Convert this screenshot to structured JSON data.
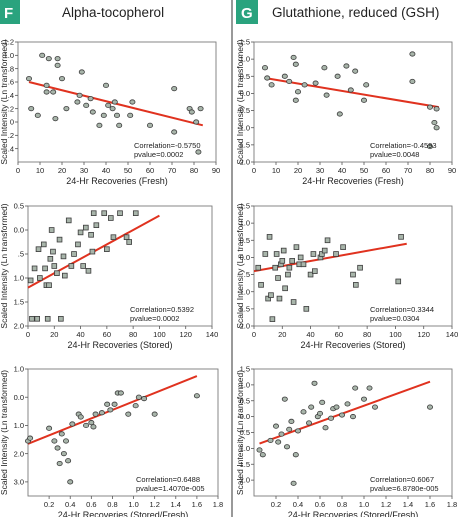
{
  "figure": {
    "divider_color": "#333333",
    "point_fill": "#a8b5aa",
    "fit_color": "#e0321f",
    "badge_color": "#2aa37e"
  },
  "columns": [
    {
      "badge": "F",
      "title": "Alpha-tocopherol"
    },
    {
      "badge": "G",
      "title": "Glutathione, reduced (GSH)"
    }
  ],
  "chart_data": [
    {
      "type": "scatter",
      "marker": "circle",
      "column": 0,
      "xlabel": "24-Hr Recoveries (Fresh)",
      "ylabel": "Scaled Intensity (Ln transformed)",
      "xlim": [
        0,
        90
      ],
      "ylim": [
        -0.6,
        1.2
      ],
      "xticks": [
        {
          "v": 0,
          "t": "0"
        },
        {
          "v": 10,
          "t": "10"
        },
        {
          "v": 20,
          "t": "20"
        },
        {
          "v": 30,
          "t": "30"
        },
        {
          "v": 40,
          "t": "40"
        },
        {
          "v": 50,
          "t": "50"
        },
        {
          "v": 60,
          "t": "60"
        },
        {
          "v": 70,
          "t": "70"
        },
        {
          "v": 80,
          "t": "80"
        },
        {
          "v": 90,
          "t": "90"
        }
      ],
      "yticks": [
        {
          "v": 1.2,
          "t": "1.2"
        },
        {
          "v": 1.0,
          "t": "1.0"
        },
        {
          "v": 0.8,
          "t": ".8"
        },
        {
          "v": 0.6,
          "t": ".6"
        },
        {
          "v": 0.4,
          "t": ".4"
        },
        {
          "v": 0.2,
          "t": ".2"
        },
        {
          "v": 0.0,
          "t": "0"
        },
        {
          "v": -0.2,
          "t": ".2"
        },
        {
          "v": -0.4,
          "t": ".4"
        }
      ],
      "correlation": "Correlation=-0.5750",
      "pvalue": "pvalue=0.0002",
      "fit": {
        "x1": 5,
        "y1": 0.6,
        "x2": 84,
        "y2": -0.05
      },
      "points": [
        [
          5,
          0.65
        ],
        [
          6,
          0.2
        ],
        [
          9,
          0.1
        ],
        [
          11,
          1.0
        ],
        [
          13,
          0.55
        ],
        [
          13,
          0.45
        ],
        [
          14,
          0.95
        ],
        [
          16,
          0.45
        ],
        [
          17,
          0.05
        ],
        [
          18,
          0.95
        ],
        [
          18,
          0.85
        ],
        [
          20,
          0.65
        ],
        [
          22,
          0.2
        ],
        [
          27,
          0.3
        ],
        [
          28,
          0.4
        ],
        [
          29,
          0.75
        ],
        [
          31,
          0.25
        ],
        [
          33,
          0.35
        ],
        [
          34,
          0.15
        ],
        [
          37,
          -0.05
        ],
        [
          39,
          0.1
        ],
        [
          40,
          0.55
        ],
        [
          41,
          0.25
        ],
        [
          43,
          0.2
        ],
        [
          44,
          0.3
        ],
        [
          45,
          0.1
        ],
        [
          46,
          -0.05
        ],
        [
          51,
          0.1
        ],
        [
          52,
          0.3
        ],
        [
          60,
          -0.05
        ],
        [
          71,
          0.5
        ],
        [
          71,
          -0.15
        ],
        [
          78,
          0.2
        ],
        [
          79,
          0.15
        ],
        [
          81,
          0.0
        ],
        [
          82,
          -0.45
        ],
        [
          83,
          0.2
        ]
      ]
    },
    {
      "type": "scatter",
      "marker": "circle",
      "column": 1,
      "xlabel": "24-Hr Recoveries (Fresh)",
      "ylabel": "Scaled Intensity (Ln transformed)",
      "xlim": [
        0,
        90
      ],
      "ylim": [
        -2.0,
        1.5
      ],
      "xticks": [
        {
          "v": 0,
          "t": "0"
        },
        {
          "v": 10,
          "t": "10"
        },
        {
          "v": 20,
          "t": "20"
        },
        {
          "v": 30,
          "t": "30"
        },
        {
          "v": 40,
          "t": "40"
        },
        {
          "v": 50,
          "t": "50"
        },
        {
          "v": 60,
          "t": "60"
        },
        {
          "v": 70,
          "t": "70"
        },
        {
          "v": 80,
          "t": "80"
        },
        {
          "v": 90,
          "t": "90"
        }
      ],
      "yticks": [
        {
          "v": 1.5,
          "t": "1.5"
        },
        {
          "v": 1.0,
          "t": "1.0"
        },
        {
          "v": 0.5,
          "t": "0.5"
        },
        {
          "v": 0.0,
          "t": "0.0"
        },
        {
          "v": -0.5,
          "t": "0.5"
        },
        {
          "v": -1.0,
          "t": "1.0"
        },
        {
          "v": -1.5,
          "t": "1.5"
        },
        {
          "v": -2.0,
          "t": "2.0"
        }
      ],
      "correlation": "Correlation=-0.4593",
      "pvalue": "pvalue=0.0048",
      "fit": {
        "x1": 5,
        "y1": 0.45,
        "x2": 84,
        "y2": -0.4
      },
      "points": [
        [
          5,
          0.75
        ],
        [
          6,
          0.45
        ],
        [
          8,
          0.25
        ],
        [
          14,
          0.5
        ],
        [
          16,
          0.35
        ],
        [
          18,
          1.05
        ],
        [
          19,
          -0.2
        ],
        [
          19,
          0.85
        ],
        [
          20,
          0.05
        ],
        [
          23,
          0.25
        ],
        [
          28,
          0.3
        ],
        [
          32,
          0.75
        ],
        [
          33,
          -0.05
        ],
        [
          38,
          0.5
        ],
        [
          39,
          -0.6
        ],
        [
          42,
          0.8
        ],
        [
          44,
          0.1
        ],
        [
          46,
          0.65
        ],
        [
          50,
          -0.2
        ],
        [
          51,
          0.25
        ],
        [
          72,
          1.15
        ],
        [
          72,
          0.35
        ],
        [
          80,
          -0.4
        ],
        [
          80,
          -1.55
        ],
        [
          82,
          -0.85
        ],
        [
          83,
          -0.45
        ],
        [
          83,
          -1.0
        ]
      ]
    },
    {
      "type": "scatter",
      "marker": "square",
      "column": 0,
      "xlabel": "24-Hr Recoveries (Stored)",
      "ylabel": "Scaled Intensity (Ln transformed)",
      "xlim": [
        0,
        140
      ],
      "ylim": [
        -2.0,
        0.5
      ],
      "xticks": [
        {
          "v": 0,
          "t": "0"
        },
        {
          "v": 20,
          "t": "20"
        },
        {
          "v": 40,
          "t": "40"
        },
        {
          "v": 60,
          "t": "60"
        },
        {
          "v": 80,
          "t": "80"
        },
        {
          "v": 100,
          "t": "100"
        },
        {
          "v": 120,
          "t": "120"
        },
        {
          "v": 140,
          "t": "140"
        }
      ],
      "yticks": [
        {
          "v": 0.5,
          "t": "0.5"
        },
        {
          "v": 0.0,
          "t": "0.0"
        },
        {
          "v": -0.5,
          "t": ".5"
        },
        {
          "v": -1.0,
          "t": "1.0"
        },
        {
          "v": -1.5,
          "t": "1.5"
        },
        {
          "v": -2.0,
          "t": "2.0"
        }
      ],
      "correlation": "Correlation=0.5392",
      "pvalue": "pvalue=0.0002",
      "fit": {
        "x1": 0,
        "y1": -1.2,
        "x2": 100,
        "y2": 0.3
      },
      "points": [
        [
          2,
          -1.05
        ],
        [
          3,
          -1.85
        ],
        [
          5,
          -0.8
        ],
        [
          7,
          -1.85
        ],
        [
          8,
          -0.4
        ],
        [
          9,
          -1.0
        ],
        [
          12,
          -0.3
        ],
        [
          13,
          -0.8
        ],
        [
          14,
          -1.15
        ],
        [
          15,
          -1.85
        ],
        [
          16,
          -1.15
        ],
        [
          17,
          -0.6
        ],
        [
          18,
          0.0
        ],
        [
          19,
          -0.45
        ],
        [
          20,
          -0.75
        ],
        [
          22,
          -0.9
        ],
        [
          24,
          -0.2
        ],
        [
          25,
          -1.85
        ],
        [
          27,
          -0.55
        ],
        [
          28,
          -0.95
        ],
        [
          31,
          0.2
        ],
        [
          33,
          -0.75
        ],
        [
          35,
          -0.5
        ],
        [
          38,
          -0.3
        ],
        [
          40,
          -0.05
        ],
        [
          42,
          -0.75
        ],
        [
          44,
          0.05
        ],
        [
          46,
          -0.85
        ],
        [
          48,
          -0.1
        ],
        [
          49,
          -0.45
        ],
        [
          50,
          0.35
        ],
        [
          52,
          0.1
        ],
        [
          58,
          0.35
        ],
        [
          60,
          -0.4
        ],
        [
          63,
          0.25
        ],
        [
          65,
          -0.15
        ],
        [
          70,
          0.35
        ],
        [
          75,
          -0.15
        ],
        [
          77,
          -0.25
        ],
        [
          82,
          0.35
        ]
      ]
    },
    {
      "type": "scatter",
      "marker": "square",
      "column": 1,
      "xlabel": "24-Hr Recoveries (Stored)",
      "ylabel": "Scaled Intensity (Ln transformed)",
      "xlim": [
        0,
        140
      ],
      "ylim": [
        -2.0,
        1.5
      ],
      "xticks": [
        {
          "v": 0,
          "t": "0"
        },
        {
          "v": 20,
          "t": "20"
        },
        {
          "v": 40,
          "t": "40"
        },
        {
          "v": 60,
          "t": "60"
        },
        {
          "v": 80,
          "t": "80"
        },
        {
          "v": 100,
          "t": "100"
        },
        {
          "v": 120,
          "t": "120"
        },
        {
          "v": 140,
          "t": "140"
        }
      ],
      "yticks": [
        {
          "v": 1.5,
          "t": "1.5"
        },
        {
          "v": 1.0,
          "t": "1.0"
        },
        {
          "v": 0.5,
          "t": "0.5"
        },
        {
          "v": 0.0,
          "t": "0.0"
        },
        {
          "v": -0.5,
          "t": ".5"
        },
        {
          "v": -1.0,
          "t": "1.0"
        },
        {
          "v": -1.5,
          "t": "1.5"
        },
        {
          "v": -2.0,
          "t": "2.0"
        }
      ],
      "correlation": "Correlation=0.3344",
      "pvalue": "pvalue=0.0304",
      "fit": {
        "x1": 0,
        "y1": -0.4,
        "x2": 108,
        "y2": 0.4
      },
      "points": [
        [
          3,
          -0.3
        ],
        [
          5,
          -0.8
        ],
        [
          8,
          0.1
        ],
        [
          10,
          -1.2
        ],
        [
          11,
          0.6
        ],
        [
          12,
          -1.1
        ],
        [
          13,
          -1.8
        ],
        [
          15,
          -0.3
        ],
        [
          16,
          0.1
        ],
        [
          17,
          -0.6
        ],
        [
          18,
          -1.2
        ],
        [
          19,
          -0.2
        ],
        [
          20,
          -0.1
        ],
        [
          21,
          0.2
        ],
        [
          22,
          -0.9
        ],
        [
          24,
          -0.5
        ],
        [
          25,
          -0.3
        ],
        [
          27,
          -0.1
        ],
        [
          28,
          -1.3
        ],
        [
          30,
          0.3
        ],
        [
          32,
          -0.2
        ],
        [
          33,
          0.0
        ],
        [
          35,
          -0.2
        ],
        [
          37,
          -1.5
        ],
        [
          40,
          -0.5
        ],
        [
          42,
          0.1
        ],
        [
          43,
          -0.4
        ],
        [
          47,
          0.0
        ],
        [
          48,
          0.1
        ],
        [
          50,
          0.2
        ],
        [
          52,
          0.5
        ],
        [
          58,
          0.1
        ],
        [
          63,
          0.3
        ],
        [
          70,
          -0.5
        ],
        [
          72,
          -0.8
        ],
        [
          75,
          -0.3
        ],
        [
          102,
          -0.7
        ],
        [
          104,
          0.6
        ]
      ]
    },
    {
      "type": "scatter",
      "marker": "circle",
      "column": 0,
      "xlabel": "24-Hr Recoveries (Stored/Fresh)",
      "ylabel": "Scaled Intensity (Ln transformed)",
      "xlim": [
        0,
        1.8
      ],
      "ylim": [
        -3.5,
        1.0
      ],
      "xticks": [
        {
          "v": 0.2,
          "t": "0.2"
        },
        {
          "v": 0.4,
          "t": "0.4"
        },
        {
          "v": 0.6,
          "t": "0.6"
        },
        {
          "v": 0.8,
          "t": "0.8"
        },
        {
          "v": 1.0,
          "t": "1.0"
        },
        {
          "v": 1.2,
          "t": "1.2"
        },
        {
          "v": 1.4,
          "t": "1.4"
        },
        {
          "v": 1.6,
          "t": "1.6"
        },
        {
          "v": 1.8,
          "t": "1.8"
        }
      ],
      "yticks": [
        {
          "v": 1.0,
          "t": "1.0"
        },
        {
          "v": 0.0,
          "t": "0.0"
        },
        {
          "v": -1.0,
          "t": "1.0"
        },
        {
          "v": -2.0,
          "t": "2.0"
        },
        {
          "v": -3.0,
          "t": "3.0"
        }
      ],
      "correlation": "Correlation=0.6488",
      "pvalue": "pvalue=1.4070e-005",
      "fit": {
        "x1": 0.0,
        "y1": -1.65,
        "x2": 1.6,
        "y2": 0.75
      },
      "points": [
        [
          0.0,
          -1.55
        ],
        [
          0.02,
          -1.45
        ],
        [
          0.2,
          -1.1
        ],
        [
          0.25,
          -1.55
        ],
        [
          0.28,
          -1.8
        ],
        [
          0.3,
          -2.35
        ],
        [
          0.32,
          -1.3
        ],
        [
          0.34,
          -2.0
        ],
        [
          0.36,
          -1.55
        ],
        [
          0.38,
          -2.25
        ],
        [
          0.4,
          -3.0
        ],
        [
          0.42,
          -0.95
        ],
        [
          0.48,
          -0.6
        ],
        [
          0.5,
          -0.7
        ],
        [
          0.55,
          -1.0
        ],
        [
          0.6,
          -0.9
        ],
        [
          0.62,
          -1.05
        ],
        [
          0.64,
          -0.6
        ],
        [
          0.7,
          -0.55
        ],
        [
          0.75,
          -0.25
        ],
        [
          0.78,
          -0.45
        ],
        [
          0.82,
          -0.25
        ],
        [
          0.85,
          0.15
        ],
        [
          0.88,
          0.15
        ],
        [
          0.95,
          -0.6
        ],
        [
          1.02,
          -0.3
        ],
        [
          1.05,
          0.0
        ],
        [
          1.1,
          -0.05
        ],
        [
          1.2,
          -0.6
        ],
        [
          1.6,
          0.05
        ]
      ]
    },
    {
      "type": "scatter",
      "marker": "circle",
      "column": 1,
      "xlabel": "24-Hr Recoveries (Stored/Fresh)",
      "ylabel": "Scaled Intensity (Ln transformed)",
      "xlim": [
        0,
        1.8
      ],
      "ylim": [
        -2.5,
        1.5
      ],
      "xticks": [
        {
          "v": 0.2,
          "t": "0.2"
        },
        {
          "v": 0.4,
          "t": "0.4"
        },
        {
          "v": 0.6,
          "t": "0.6"
        },
        {
          "v": 0.8,
          "t": "0.8"
        },
        {
          "v": 1.0,
          "t": "1.0"
        },
        {
          "v": 1.2,
          "t": "1.2"
        },
        {
          "v": 1.4,
          "t": "1.4"
        },
        {
          "v": 1.6,
          "t": "1.6"
        },
        {
          "v": 1.8,
          "t": "1.8"
        }
      ],
      "yticks": [
        {
          "v": 1.5,
          "t": "1.5"
        },
        {
          "v": 1.0,
          "t": "1.0"
        },
        {
          "v": 0.5,
          "t": "0.5"
        },
        {
          "v": 0.0,
          "t": "0.0"
        },
        {
          "v": -0.5,
          "t": "0.5"
        },
        {
          "v": -1.0,
          "t": "1.0"
        },
        {
          "v": -1.5,
          "t": "1.5"
        },
        {
          "v": -2.0,
          "t": "2.0"
        }
      ],
      "correlation": "Correlation=0.6067",
      "pvalue": "pvalue=6.8780e-005",
      "fit": {
        "x1": 0.05,
        "y1": -0.85,
        "x2": 1.6,
        "y2": 1.1
      },
      "points": [
        [
          0.05,
          -1.05
        ],
        [
          0.08,
          -1.2
        ],
        [
          0.15,
          -0.75
        ],
        [
          0.2,
          -0.3
        ],
        [
          0.22,
          -0.8
        ],
        [
          0.25,
          -0.55
        ],
        [
          0.28,
          0.55
        ],
        [
          0.3,
          -0.95
        ],
        [
          0.32,
          -0.4
        ],
        [
          0.34,
          -0.15
        ],
        [
          0.36,
          -2.1
        ],
        [
          0.38,
          -1.2
        ],
        [
          0.4,
          -0.45
        ],
        [
          0.45,
          0.15
        ],
        [
          0.5,
          -0.2
        ],
        [
          0.52,
          0.3
        ],
        [
          0.55,
          1.05
        ],
        [
          0.58,
          0.0
        ],
        [
          0.6,
          0.1
        ],
        [
          0.62,
          0.45
        ],
        [
          0.65,
          -0.35
        ],
        [
          0.7,
          -0.05
        ],
        [
          0.72,
          0.25
        ],
        [
          0.75,
          0.3
        ],
        [
          0.8,
          0.05
        ],
        [
          0.85,
          0.4
        ],
        [
          0.9,
          0.0
        ],
        [
          0.92,
          0.9
        ],
        [
          1.0,
          0.55
        ],
        [
          1.05,
          0.9
        ],
        [
          1.1,
          0.3
        ],
        [
          1.6,
          0.3
        ]
      ]
    }
  ]
}
